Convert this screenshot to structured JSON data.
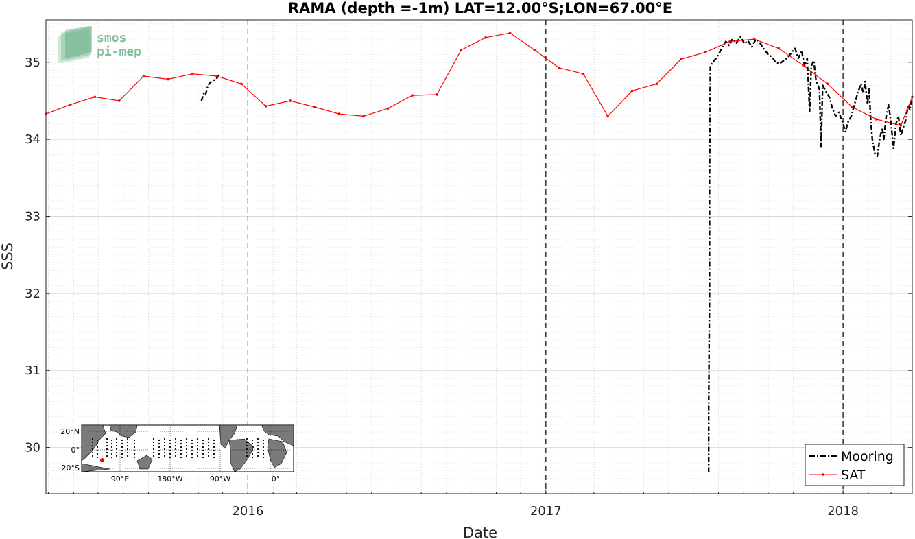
{
  "chart_data": {
    "type": "line",
    "title": "RAMA (depth =-1m) LAT=12.00°S;LON=67.00°E",
    "xlabel": "Date",
    "ylabel": "SSS",
    "x_range": [
      "2015-04-28",
      "2018-03-27"
    ],
    "ylim": [
      29.4,
      35.55
    ],
    "x_ticks": [
      {
        "date": "2016-01-01",
        "label": "2016"
      },
      {
        "date": "2017-01-01",
        "label": "2017"
      },
      {
        "date": "2018-01-01",
        "label": "2018"
      }
    ],
    "y_ticks": [
      30,
      31,
      32,
      33,
      34,
      35
    ],
    "year_markers": [
      "2016-01-01",
      "2017-01-01",
      "2018-01-01"
    ],
    "grid": true,
    "legend": {
      "location": "bottom-right"
    },
    "series": [
      {
        "name": "Mooring",
        "color": "#000000",
        "style": "dash-dot",
        "segments": [
          [
            [
              "2015-11-05",
              34.5
            ],
            [
              "2015-11-08",
              34.6
            ],
            [
              "2015-11-10",
              34.58
            ],
            [
              "2015-11-13",
              34.7
            ],
            [
              "2015-11-16",
              34.74
            ],
            [
              "2015-11-19",
              34.76
            ],
            [
              "2015-11-23",
              34.78
            ],
            [
              "2015-11-27",
              34.84
            ]
          ],
          [
            [
              "2017-07-20",
              29.68
            ],
            [
              "2017-07-20",
              30.5
            ],
            [
              "2017-07-21",
              32.0
            ],
            [
              "2017-07-21",
              33.5
            ],
            [
              "2017-07-22",
              34.95
            ],
            [
              "2017-07-25",
              35.0
            ],
            [
              "2017-07-29",
              35.05
            ],
            [
              "2017-08-02",
              35.12
            ],
            [
              "2017-08-06",
              35.2
            ],
            [
              "2017-08-10",
              35.27
            ],
            [
              "2017-08-14",
              35.22
            ],
            [
              "2017-08-18",
              35.3
            ],
            [
              "2017-08-23",
              35.25
            ],
            [
              "2017-08-28",
              35.33
            ],
            [
              "2017-09-02",
              35.24
            ],
            [
              "2017-09-06",
              35.28
            ],
            [
              "2017-09-11",
              35.2
            ],
            [
              "2017-09-16",
              35.3
            ],
            [
              "2017-09-21",
              35.25
            ],
            [
              "2017-09-26",
              35.17
            ],
            [
              "2017-10-01",
              35.1
            ],
            [
              "2017-10-06",
              35.07
            ],
            [
              "2017-10-10",
              35.0
            ],
            [
              "2017-10-15",
              34.98
            ],
            [
              "2017-10-20",
              35.02
            ],
            [
              "2017-10-25",
              35.06
            ],
            [
              "2017-10-30",
              35.13
            ],
            [
              "2017-11-03",
              35.18
            ],
            [
              "2017-11-07",
              35.05
            ],
            [
              "2017-11-11",
              35.15
            ],
            [
              "2017-11-15",
              34.95
            ],
            [
              "2017-11-18",
              35.05
            ],
            [
              "2017-11-21",
              34.35
            ],
            [
              "2017-11-23",
              34.95
            ],
            [
              "2017-11-26",
              35.02
            ],
            [
              "2017-11-29",
              34.75
            ],
            [
              "2017-12-03",
              34.65
            ],
            [
              "2017-12-05",
              33.9
            ],
            [
              "2017-12-07",
              34.7
            ],
            [
              "2017-12-11",
              34.62
            ],
            [
              "2017-12-15",
              34.55
            ],
            [
              "2017-12-19",
              34.4
            ],
            [
              "2017-12-23",
              34.3
            ],
            [
              "2017-12-27",
              34.35
            ],
            [
              "2018-01-01",
              34.2
            ],
            [
              "2018-01-04",
              34.1
            ],
            [
              "2018-01-07",
              34.22
            ],
            [
              "2018-01-11",
              34.3
            ],
            [
              "2018-01-15",
              34.45
            ],
            [
              "2018-01-19",
              34.6
            ],
            [
              "2018-01-23",
              34.72
            ],
            [
              "2018-01-26",
              34.6
            ],
            [
              "2018-01-28",
              34.75
            ],
            [
              "2018-01-31",
              34.45
            ],
            [
              "2018-02-02",
              34.65
            ],
            [
              "2018-02-04",
              34.25
            ],
            [
              "2018-02-06",
              34.0
            ],
            [
              "2018-02-09",
              33.82
            ],
            [
              "2018-02-12",
              33.78
            ],
            [
              "2018-02-15",
              34.0
            ],
            [
              "2018-02-18",
              34.15
            ],
            [
              "2018-02-20",
              34.0
            ],
            [
              "2018-02-23",
              34.3
            ],
            [
              "2018-02-26",
              34.45
            ],
            [
              "2018-03-01",
              34.2
            ],
            [
              "2018-03-04",
              33.88
            ],
            [
              "2018-03-07",
              34.2
            ],
            [
              "2018-03-10",
              34.3
            ],
            [
              "2018-03-13",
              34.05
            ],
            [
              "2018-03-16",
              34.15
            ],
            [
              "2018-03-19",
              34.25
            ],
            [
              "2018-03-22",
              34.45
            ],
            [
              "2018-03-24",
              34.38
            ],
            [
              "2018-03-26",
              34.5
            ]
          ]
        ]
      },
      {
        "name": "SAT",
        "color": "#ff0000",
        "style": "solid-dots",
        "points": [
          [
            "2015-04-28",
            34.33
          ],
          [
            "2015-05-28",
            34.45
          ],
          [
            "2015-06-27",
            34.55
          ],
          [
            "2015-07-27",
            34.5
          ],
          [
            "2015-08-26",
            34.82
          ],
          [
            "2015-09-25",
            34.78
          ],
          [
            "2015-10-25",
            34.85
          ],
          [
            "2015-11-24",
            34.82
          ],
          [
            "2015-12-24",
            34.72
          ],
          [
            "2016-01-23",
            34.43
          ],
          [
            "2016-02-22",
            34.5
          ],
          [
            "2016-03-23",
            34.42
          ],
          [
            "2016-04-22",
            34.33
          ],
          [
            "2016-05-22",
            34.3
          ],
          [
            "2016-06-21",
            34.4
          ],
          [
            "2016-07-21",
            34.57
          ],
          [
            "2016-08-20",
            34.58
          ],
          [
            "2016-09-19",
            35.16
          ],
          [
            "2016-10-19",
            35.32
          ],
          [
            "2016-11-18",
            35.38
          ],
          [
            "2016-12-18",
            35.16
          ],
          [
            "2017-01-17",
            34.93
          ],
          [
            "2017-02-16",
            34.85
          ],
          [
            "2017-03-18",
            34.3
          ],
          [
            "2017-04-17",
            34.63
          ],
          [
            "2017-05-17",
            34.72
          ],
          [
            "2017-06-16",
            35.04
          ],
          [
            "2017-07-16",
            35.13
          ],
          [
            "2017-08-15",
            35.27
          ],
          [
            "2017-09-14",
            35.3
          ],
          [
            "2017-10-14",
            35.18
          ],
          [
            "2017-11-13",
            34.96
          ],
          [
            "2017-12-13",
            34.72
          ],
          [
            "2018-01-12",
            34.42
          ],
          [
            "2018-02-11",
            34.26
          ],
          [
            "2018-03-13",
            34.18
          ],
          [
            "2018-03-27",
            34.55
          ]
        ]
      }
    ]
  },
  "logo": {
    "line1": "smos",
    "line2": "pi-mep"
  },
  "inset_map": {
    "lat_labels": [
      "20°N",
      "0°",
      "20°S"
    ],
    "lon_labels": [
      "90°E",
      "180°W",
      "90°W",
      "0°"
    ],
    "marker_color": "#ff0000"
  }
}
